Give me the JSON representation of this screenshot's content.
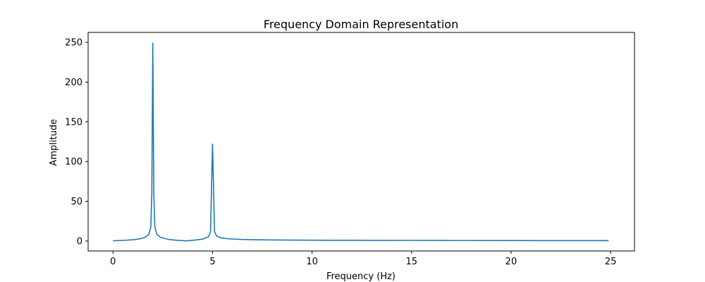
{
  "chart_data": {
    "type": "line",
    "title": "Frequency Domain Representation",
    "xlabel": "Frequency (Hz)",
    "ylabel": "Amplitude",
    "xlim": [
      -1.25,
      26.2
    ],
    "ylim": [
      -12.5,
      262.5
    ],
    "xticks": [
      0,
      5,
      10,
      15,
      20,
      25
    ],
    "yticks": [
      0,
      50,
      100,
      150,
      200,
      250
    ],
    "grid": false,
    "series": [
      {
        "color": "#1f77b4",
        "x": [
          0,
          0.5,
          1.0,
          1.3,
          1.6,
          1.8,
          1.9,
          1.95,
          2.0,
          2.05,
          2.1,
          2.2,
          2.4,
          2.8,
          3.2,
          3.7,
          4.1,
          4.5,
          4.8,
          4.9,
          5.0,
          5.1,
          5.2,
          5.4,
          5.8,
          6.5,
          7.5,
          9,
          11,
          13,
          15,
          17,
          20,
          22,
          24,
          24.9
        ],
        "values": [
          0.3,
          0.8,
          1.6,
          2.6,
          4.5,
          8.5,
          18,
          60,
          249,
          60,
          18,
          8.5,
          4.5,
          2.0,
          1.0,
          0.2,
          1.2,
          2.4,
          5.5,
          12,
          122,
          12,
          6.5,
          4.2,
          2.8,
          2.0,
          1.5,
          1.2,
          1.0,
          0.9,
          0.8,
          0.7,
          0.6,
          0.55,
          0.5,
          0.5
        ]
      }
    ]
  }
}
